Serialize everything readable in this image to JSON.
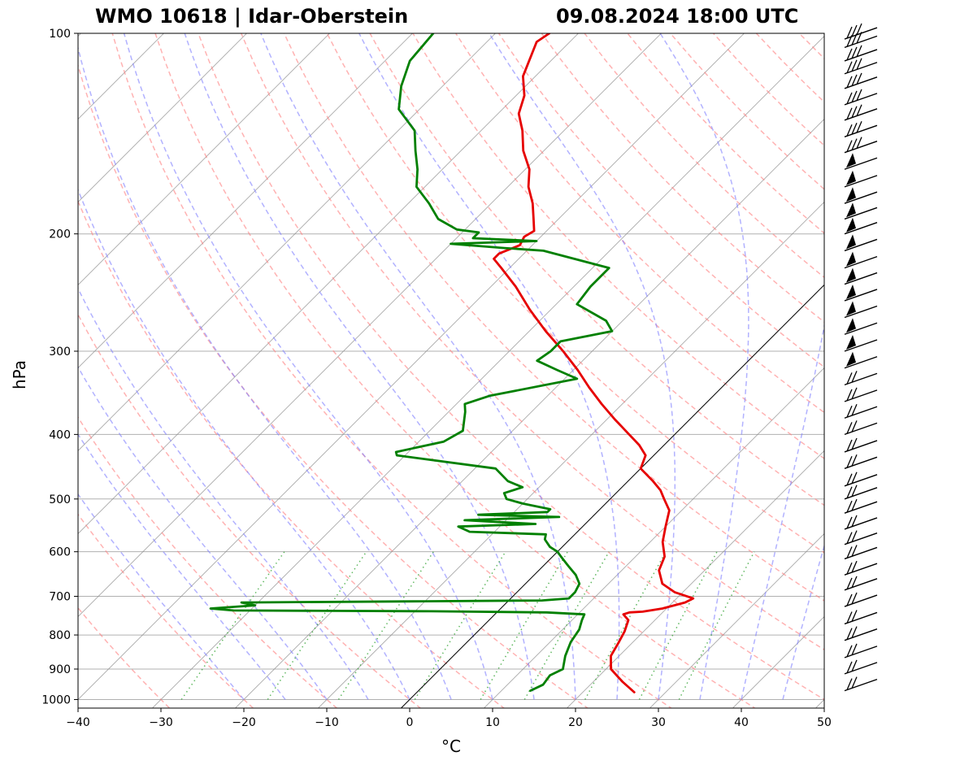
{
  "header": {
    "station": "WMO 10618 | Idar-Oberstein",
    "datetime": "09.08.2024 18:00 UTC"
  },
  "chart_data": {
    "type": "line",
    "subtype": "skew-T log-p diagram",
    "title_left": "WMO 10618 | Idar-Oberstein",
    "title_right": "09.08.2024 18:00 UTC",
    "xlabel": "°C",
    "ylabel": "hPa",
    "xlim": [
      -40,
      50
    ],
    "ylim": [
      1030,
      100
    ],
    "y_scale": "log",
    "x_ticks": [
      -40,
      -30,
      -20,
      -10,
      0,
      10,
      20,
      30,
      40,
      50
    ],
    "y_ticks": [
      100,
      200,
      300,
      400,
      500,
      600,
      700,
      800,
      900,
      1000
    ],
    "grid": true,
    "background_lines": {
      "isotherms": "thin grey solid, skewed",
      "dry_adiabats": "red dashed",
      "moist_adiabats": "blue dashed",
      "mixing_ratio": "green dotted",
      "zero_isotherm": "black solid"
    },
    "colors": {
      "temperature": "#e60000",
      "dewpoint": "#008000",
      "dry_adiabat": "#ff7f7f",
      "moist_adiabat": "#7f7fff",
      "mixing_ratio": "#2ca02c",
      "grid": "#b0b0b0"
    },
    "series": [
      {
        "key": "temperature",
        "color": "#e60000",
        "points": [
          [
            975,
            26.2
          ],
          [
            940,
            23.5
          ],
          [
            900,
            20.6
          ],
          [
            860,
            19.0
          ],
          [
            820,
            18.3
          ],
          [
            790,
            17.7
          ],
          [
            760,
            16.8
          ],
          [
            745,
            15.5
          ],
          [
            740,
            16.0
          ],
          [
            738,
            17.5
          ],
          [
            730,
            19.5
          ],
          [
            715,
            21.5
          ],
          [
            705,
            22.0
          ],
          [
            690,
            19.0
          ],
          [
            670,
            16.5
          ],
          [
            640,
            14.5
          ],
          [
            610,
            13.5
          ],
          [
            580,
            11.5
          ],
          [
            550,
            10.0
          ],
          [
            520,
            8.5
          ],
          [
            500,
            6.5
          ],
          [
            485,
            5.0
          ],
          [
            470,
            3.0
          ],
          [
            450,
            0.0
          ],
          [
            430,
            -1.0
          ],
          [
            415,
            -3.0
          ],
          [
            400,
            -5.5
          ],
          [
            380,
            -9.0
          ],
          [
            360,
            -12.5
          ],
          [
            340,
            -16.0
          ],
          [
            320,
            -19.5
          ],
          [
            300,
            -23.5
          ],
          [
            280,
            -28.0
          ],
          [
            260,
            -32.5
          ],
          [
            240,
            -37.0
          ],
          [
            225,
            -41.0
          ],
          [
            218,
            -43.0
          ],
          [
            214,
            -43.0
          ],
          [
            208,
            -41.5
          ],
          [
            202,
            -42.0
          ],
          [
            198,
            -41.5
          ],
          [
            190,
            -43.0
          ],
          [
            180,
            -45.0
          ],
          [
            170,
            -47.5
          ],
          [
            160,
            -49.5
          ],
          [
            150,
            -52.5
          ],
          [
            140,
            -55.0
          ],
          [
            132,
            -57.5
          ],
          [
            124,
            -59.0
          ],
          [
            116,
            -61.5
          ],
          [
            108,
            -63.0
          ],
          [
            103,
            -64.0
          ],
          [
            100,
            -63.5
          ]
        ]
      },
      {
        "key": "dewpoint",
        "color": "#008000",
        "points": [
          [
            970,
            13.5
          ],
          [
            950,
            14.3
          ],
          [
            920,
            14.0
          ],
          [
            900,
            14.8
          ],
          [
            860,
            13.5
          ],
          [
            820,
            12.5
          ],
          [
            785,
            12.0
          ],
          [
            760,
            11.2
          ],
          [
            745,
            10.8
          ],
          [
            740,
            6.0
          ],
          [
            737,
            -8.0
          ],
          [
            735,
            -32.0
          ],
          [
            730,
            -35.0
          ],
          [
            722,
            -30.0
          ],
          [
            715,
            -32.0
          ],
          [
            712,
            -10.0
          ],
          [
            710,
            4.0
          ],
          [
            705,
            7.0
          ],
          [
            690,
            7.0
          ],
          [
            670,
            6.5
          ],
          [
            650,
            5.0
          ],
          [
            630,
            3.0
          ],
          [
            610,
            1.0
          ],
          [
            600,
            0.0
          ],
          [
            590,
            -1.5
          ],
          [
            575,
            -3.0
          ],
          [
            565,
            -3.5
          ],
          [
            560,
            -13.0
          ],
          [
            550,
            -15.0
          ],
          [
            545,
            -6.0
          ],
          [
            538,
            -15.0
          ],
          [
            532,
            -4.0
          ],
          [
            528,
            -14.0
          ],
          [
            523,
            -6.0
          ],
          [
            518,
            -6.0
          ],
          [
            508,
            -10.0
          ],
          [
            500,
            -12.5
          ],
          [
            490,
            -13.5
          ],
          [
            480,
            -12.0
          ],
          [
            470,
            -14.5
          ],
          [
            450,
            -17.5
          ],
          [
            430,
            -31.0
          ],
          [
            425,
            -31.5
          ],
          [
            410,
            -27.0
          ],
          [
            395,
            -26.0
          ],
          [
            370,
            -28.0
          ],
          [
            360,
            -29.0
          ],
          [
            350,
            -27.0
          ],
          [
            330,
            -18.5
          ],
          [
            320,
            -22.0
          ],
          [
            310,
            -25.5
          ],
          [
            300,
            -25.0
          ],
          [
            290,
            -25.0
          ],
          [
            280,
            -20.0
          ],
          [
            270,
            -22.0
          ],
          [
            255,
            -27.5
          ],
          [
            240,
            -28.0
          ],
          [
            225,
            -28.0
          ],
          [
            212,
            -38.0
          ],
          [
            210,
            -43.0
          ],
          [
            207,
            -50.0
          ],
          [
            205,
            -40.0
          ],
          [
            203,
            -48.0
          ],
          [
            199,
            -48.0
          ],
          [
            197,
            -51.0
          ],
          [
            190,
            -54.5
          ],
          [
            180,
            -57.5
          ],
          [
            170,
            -61.0
          ],
          [
            160,
            -63.0
          ],
          [
            150,
            -65.5
          ],
          [
            140,
            -68.0
          ],
          [
            130,
            -72.5
          ],
          [
            120,
            -75.0
          ],
          [
            110,
            -77.0
          ],
          [
            100,
            -77.5
          ]
        ]
      }
    ],
    "wind_barbs": {
      "description": "Wind barbs drawn at right margin along the pressure axis",
      "pressure_levels": [
        102,
        105,
        110,
        115,
        121,
        128,
        135,
        143,
        151,
        160,
        170,
        180,
        190,
        200,
        212,
        225,
        238,
        252,
        267,
        283,
        300,
        318,
        337,
        357,
        378,
        400,
        425,
        450,
        478,
        500,
        525,
        555,
        585,
        615,
        650,
        685,
        725,
        770,
        815,
        865,
        915,
        970
      ],
      "flag_levels": [
        160,
        170,
        180,
        190,
        200,
        212,
        225,
        238,
        252,
        267,
        283,
        300,
        318
      ]
    }
  }
}
